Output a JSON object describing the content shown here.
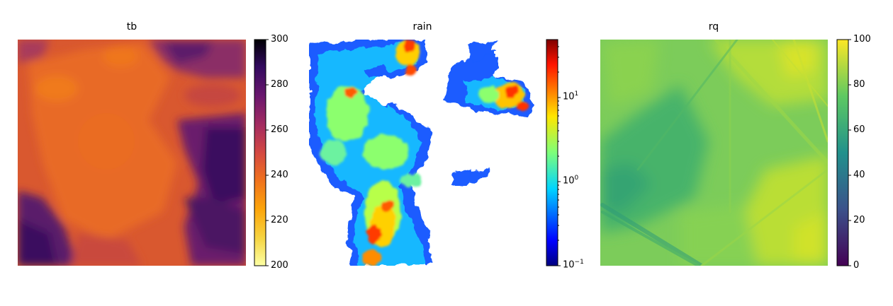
{
  "chart_data": [
    {
      "type": "heatmap",
      "title": "tb",
      "colormap": "inferno_r",
      "colorbar": {
        "scale": "linear",
        "range": [
          200,
          300
        ],
        "ticks": [
          200,
          220,
          240,
          260,
          280,
          300
        ],
        "tick_labels": [
          "200",
          "220",
          "240",
          "260",
          "280",
          "300"
        ]
      }
    },
    {
      "type": "heatmap",
      "title": "rain",
      "colormap": "jet",
      "colorbar": {
        "scale": "log",
        "range": [
          0.1,
          50
        ],
        "ticks": [
          0.1,
          1,
          10
        ],
        "tick_labels": [
          "10",
          "10",
          "10"
        ],
        "tick_exponents": [
          "−1",
          "0",
          "1"
        ]
      }
    },
    {
      "type": "heatmap",
      "title": "rq",
      "colormap": "viridis",
      "colorbar": {
        "scale": "linear",
        "range": [
          0,
          100
        ],
        "ticks": [
          0,
          20,
          40,
          60,
          80,
          100
        ],
        "tick_labels": [
          "0",
          "20",
          "40",
          "60",
          "80",
          "100"
        ]
      }
    }
  ]
}
